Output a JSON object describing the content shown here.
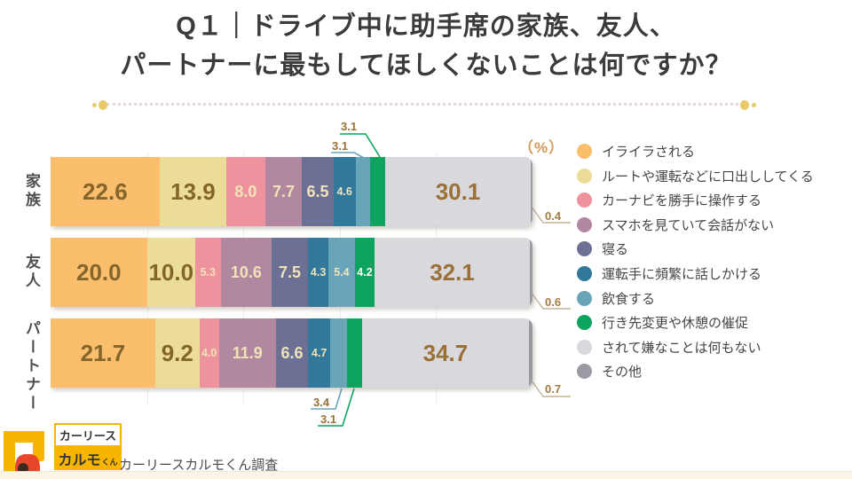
{
  "title": {
    "line1": "Q１｜ドライブ中に助手席の家族、友人、",
    "line2": "パートナーに最もしてほしくないことは何ですか？"
  },
  "unit_label": "（%）",
  "source": "カーリースカルモくん調査",
  "logo": {
    "top": "カーリース",
    "bottom": "カルモ",
    "bottom_suffix": "くん"
  },
  "colors": {
    "title_text": "#3b3b3b",
    "divider_gold": "#e9c968",
    "value_brown": "#9a7037",
    "value_cream": "#f0e3b8",
    "logo_yellow": "#f7b400",
    "logo_red": "#e8472b"
  },
  "chart_data": {
    "type": "bar",
    "orientation": "horizontal",
    "stacked": true,
    "unit": "%",
    "xlim": [
      0,
      100
    ],
    "legend_position": "right",
    "categories": [
      "家族",
      "友人",
      "パートナー"
    ],
    "series": [
      {
        "name": "イライラされる",
        "color": "#fbbe6c",
        "values": [
          22.6,
          20.0,
          21.7
        ]
      },
      {
        "name": "ルートや運転などに口出ししてくる",
        "color": "#ebdc98",
        "values": [
          13.9,
          10.0,
          9.2
        ]
      },
      {
        "name": "カーナビを勝手に操作する",
        "color": "#ee939d",
        "values": [
          8.0,
          5.3,
          4.0
        ]
      },
      {
        "name": "スマホを見ていて会話がない",
        "color": "#b288a0",
        "values": [
          7.7,
          10.6,
          11.9
        ]
      },
      {
        "name": "寝る",
        "color": "#6c7095",
        "values": [
          6.5,
          7.5,
          6.6
        ]
      },
      {
        "name": "運転手に頻繁に話しかける",
        "color": "#31789b",
        "values": [
          4.6,
          4.3,
          4.7
        ]
      },
      {
        "name": "飲食する",
        "color": "#69a5b9",
        "values": [
          3.1,
          5.4,
          3.4
        ]
      },
      {
        "name": "行き先変更や休憩の催促",
        "color": "#0ca45f",
        "values": [
          3.1,
          4.2,
          3.1
        ]
      },
      {
        "name": "されて嫌なことは何もない",
        "color": "#d9d9dd",
        "values": [
          30.1,
          32.1,
          34.7
        ]
      },
      {
        "name": "その他",
        "color": "#9a9aa2",
        "values": [
          0.4,
          0.6,
          0.7
        ]
      }
    ]
  }
}
